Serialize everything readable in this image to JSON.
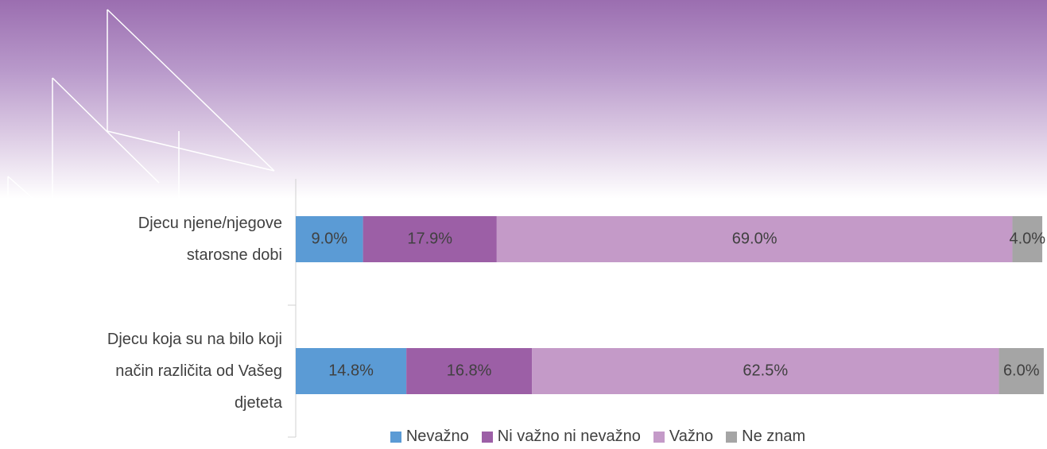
{
  "chart_data": {
    "type": "stacked-bar-horizontal",
    "categories": [
      "Djecu njene/njegove starosne dobi",
      "Djecu koja su na bilo koji način različita od Vašeg djeteta"
    ],
    "series": [
      {
        "name": "Nevažno",
        "color": "#5b9bd5",
        "values": [
          9.0,
          14.8
        ],
        "value_labels": [
          "9.0%",
          "14.8%"
        ]
      },
      {
        "name": "Ni važno ni nevažno",
        "color": "#9c5fa6",
        "values": [
          17.9,
          16.8
        ],
        "value_labels": [
          "17.9%",
          "16.8%"
        ]
      },
      {
        "name": "Važno",
        "color": "#c49ac8",
        "values": [
          69.0,
          62.5
        ],
        "value_labels": [
          "69.0%",
          "62.5%"
        ]
      },
      {
        "name": "Ne znam",
        "color": "#a5a5a5",
        "values": [
          4.0,
          6.0
        ],
        "value_labels": [
          "4.0%",
          "6.0%"
        ]
      }
    ],
    "xlim": [
      0,
      100
    ]
  }
}
